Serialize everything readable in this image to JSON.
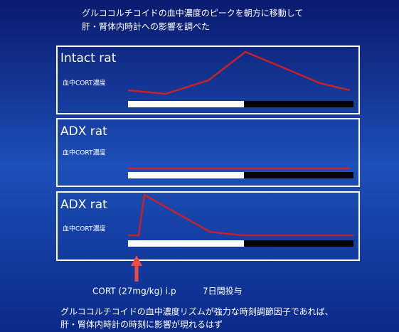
{
  "header": {
    "lines": [
      "グルココルチコイドの血中濃度のピークを朝方に移動して",
      "肝・腎体内時計への影響を調べた"
    ]
  },
  "panels": [
    {
      "title": "Intact rat",
      "y_label": "血中CORT濃度"
    },
    {
      "title": "ADX rat",
      "y_label": "血中CORT濃度"
    },
    {
      "title": "ADX rat",
      "y_label": "血中CORT濃度"
    }
  ],
  "annotation": {
    "dose": "CORT (27mg/kg) i.p",
    "duration": "7日間投与"
  },
  "footer": {
    "lines": [
      "グルココルチコイドの血中濃度リズムが強力な時刻調節因子であれば、",
      "肝・腎体内時計の時刻に影響が現れるはず"
    ]
  }
}
